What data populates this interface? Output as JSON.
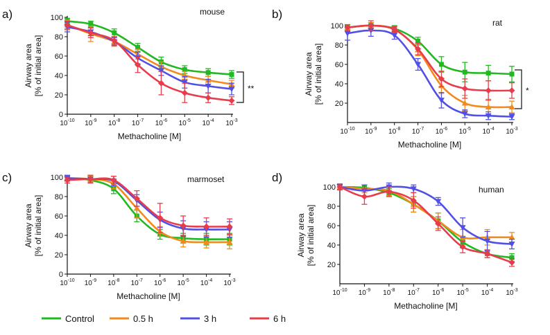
{
  "figure": {
    "x_tick_base": "10",
    "x_tick_exponents": [
      "-10",
      "-9",
      "-8",
      "-7",
      "-6",
      "-5",
      "-4",
      "-3"
    ],
    "legend": [
      {
        "name": "Control",
        "color": "#22b822"
      },
      {
        "name": "0.5 h",
        "color": "#f28a1c"
      },
      {
        "name": "3 h",
        "color": "#5050e6"
      },
      {
        "name": "6 h",
        "color": "#e63c4b"
      }
    ]
  },
  "chart_data": [
    {
      "type": "line",
      "panel_label": "a)",
      "title": "mouse",
      "xlabel": "Methacholine [M]",
      "ylabel": "Airway area",
      "ylabel2": "[% of initial area]",
      "x_scale": "log",
      "x": [
        1e-10,
        1e-09,
        1e-08,
        1e-07,
        1e-06,
        1e-05,
        0.0001,
        0.001
      ],
      "ylim": [
        0,
        100
      ],
      "yticks": [
        0,
        20,
        40,
        60,
        80,
        100
      ],
      "significance": "**",
      "series": [
        {
          "name": "Control",
          "values": [
            96,
            93,
            84,
            69,
            54,
            46,
            43,
            41
          ],
          "errors": [
            3,
            3,
            4,
            4,
            5,
            4,
            4,
            4
          ]
        },
        {
          "name": "0.5 h",
          "values": [
            92,
            83,
            75,
            62,
            49,
            40,
            35,
            31
          ],
          "errors": [
            5,
            8,
            5,
            5,
            5,
            4,
            4,
            4
          ]
        },
        {
          "name": "3 h",
          "values": [
            90,
            85,
            75,
            58,
            45,
            33,
            29,
            26
          ],
          "errors": [
            5,
            4,
            4,
            6,
            5,
            6,
            7,
            6
          ]
        },
        {
          "name": "6 h",
          "values": [
            92,
            84,
            76,
            51,
            32,
            22,
            17,
            14
          ],
          "errors": [
            4,
            5,
            4,
            8,
            12,
            10,
            5,
            4
          ]
        }
      ]
    },
    {
      "type": "line",
      "panel_label": "b)",
      "title": "rat",
      "xlabel": "Methacholine [M]",
      "ylabel": "Airway area",
      "ylabel2": "[% of initial area]",
      "x_scale": "log",
      "x": [
        1e-10,
        1e-09,
        1e-08,
        1e-07,
        1e-06,
        1e-05,
        0.0001,
        0.001
      ],
      "ylim": [
        0,
        100
      ],
      "yticks": [
        20,
        40,
        60,
        80,
        100
      ],
      "significance": "*",
      "series": [
        {
          "name": "Control",
          "values": [
            98,
            100,
            97,
            84,
            60,
            52,
            51,
            50
          ],
          "errors": [
            3,
            3,
            3,
            4,
            8,
            10,
            8,
            8
          ]
        },
        {
          "name": "0.5 h",
          "values": [
            98,
            100,
            96,
            75,
            38,
            20,
            16,
            16
          ],
          "errors": [
            3,
            3,
            3,
            6,
            8,
            8,
            8,
            6
          ]
        },
        {
          "name": "3 h",
          "values": [
            92,
            95,
            90,
            60,
            23,
            9,
            7,
            6
          ],
          "errors": [
            7,
            6,
            4,
            6,
            8,
            4,
            4,
            3
          ]
        },
        {
          "name": "6 h",
          "values": [
            98,
            100,
            96,
            76,
            45,
            35,
            33,
            33
          ],
          "errors": [
            3,
            5,
            3,
            6,
            8,
            10,
            10,
            8
          ]
        }
      ]
    },
    {
      "type": "line",
      "panel_label": "c)",
      "title": "marmoset",
      "xlabel": "Methacholine [M]",
      "ylabel": "Airway area",
      "ylabel2": "[% of initial area]",
      "x_scale": "log",
      "x": [
        1e-10,
        1e-09,
        1e-08,
        1e-07,
        1e-06,
        1e-05,
        0.0001,
        0.001
      ],
      "ylim": [
        0,
        100
      ],
      "yticks": [
        0,
        20,
        40,
        60,
        80,
        100
      ],
      "series": [
        {
          "name": "Control",
          "values": [
            99,
            97,
            88,
            60,
            41,
            37,
            36,
            36
          ],
          "errors": [
            3,
            3,
            5,
            6,
            5,
            5,
            6,
            6
          ]
        },
        {
          "name": "0.5 h",
          "values": [
            99,
            98,
            93,
            68,
            44,
            34,
            33,
            33
          ],
          "errors": [
            3,
            3,
            5,
            10,
            5,
            6,
            6,
            7
          ]
        },
        {
          "name": "3 h",
          "values": [
            99,
            98,
            96,
            76,
            56,
            47,
            46,
            46
          ],
          "errors": [
            3,
            4,
            5,
            6,
            8,
            8,
            8,
            8
          ]
        },
        {
          "name": "6 h",
          "values": [
            97,
            98,
            97,
            78,
            58,
            50,
            49,
            49
          ],
          "errors": [
            3,
            4,
            4,
            8,
            15,
            10,
            9,
            8
          ]
        }
      ]
    },
    {
      "type": "line",
      "panel_label": "d)",
      "title": "human",
      "xlabel": "Methacholine [M]",
      "ylabel": "Airway area",
      "ylabel2": "[% of initial area]",
      "x_scale": "log",
      "x": [
        1e-10,
        1e-09,
        1e-08,
        1e-07,
        1e-06,
        1e-05,
        0.0001,
        0.001
      ],
      "ylim": [
        0,
        100
      ],
      "yticks": [
        20,
        40,
        60,
        80,
        100
      ],
      "series": [
        {
          "name": "Control",
          "values": [
            100,
            99,
            94,
            82,
            65,
            43,
            31,
            27
          ],
          "errors": [
            3,
            3,
            4,
            8,
            8,
            6,
            4,
            4
          ]
        },
        {
          "name": "0.5 h",
          "values": [
            100,
            98,
            96,
            82,
            65,
            48,
            48,
            48
          ],
          "errors": [
            3,
            4,
            5,
            8,
            8,
            8,
            8,
            5
          ]
        },
        {
          "name": "3 h",
          "values": [
            100,
            96,
            100,
            98,
            85,
            58,
            44,
            41
          ],
          "errors": [
            3,
            6,
            4,
            4,
            4,
            10,
            10,
            5
          ]
        },
        {
          "name": "6 h",
          "values": [
            100,
            90,
            95,
            86,
            62,
            38,
            31,
            22
          ],
          "errors": [
            3,
            8,
            5,
            8,
            7,
            6,
            4,
            4
          ]
        }
      ]
    }
  ]
}
